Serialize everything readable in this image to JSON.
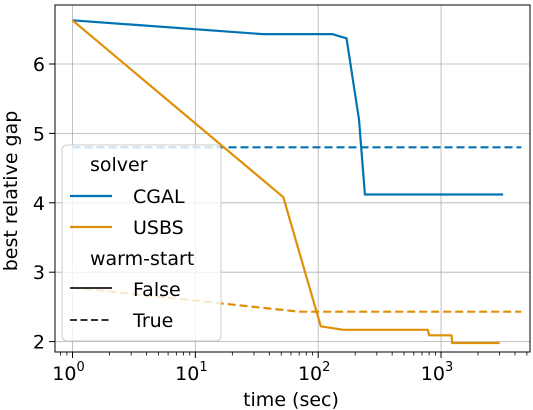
{
  "chart_data": {
    "type": "line",
    "xlabel": "time (sec)",
    "ylabel": "best relative gap",
    "xscale": "log",
    "xlim": [
      0.72,
      5300
    ],
    "ylim": [
      1.85,
      6.85
    ],
    "xticks": [
      {
        "value": 1,
        "base": "10",
        "exp": "0"
      },
      {
        "value": 10,
        "base": "10",
        "exp": "1"
      },
      {
        "value": 100,
        "base": "10",
        "exp": "2"
      },
      {
        "value": 1000,
        "base": "10",
        "exp": "3"
      }
    ],
    "yticks": [
      2,
      3,
      4,
      5,
      6
    ],
    "grid": true,
    "legend": {
      "position": "lower-left",
      "hue_title": "solver",
      "style_title": "warm-start",
      "style_entries": [
        "False",
        "True"
      ]
    },
    "series": [
      {
        "name": "CGAL",
        "warm_start": "False",
        "color": "#0173b2",
        "dash": "solid",
        "points": [
          [
            1,
            6.63
          ],
          [
            35,
            6.43
          ],
          [
            130,
            6.43
          ],
          [
            170,
            6.37
          ],
          [
            215,
            5.2
          ],
          [
            240,
            4.12
          ],
          [
            3200,
            4.12
          ]
        ]
      },
      {
        "name": "CGAL",
        "warm_start": "True",
        "color": "#0173b2",
        "dash": "dashed",
        "points": [
          [
            1,
            4.8
          ],
          [
            4500,
            4.8
          ]
        ]
      },
      {
        "name": "USBS",
        "warm_start": "False",
        "color": "#de8f05",
        "dash": "solid",
        "points": [
          [
            1,
            6.63
          ],
          [
            52,
            4.08
          ],
          [
            105,
            2.22
          ],
          [
            160,
            2.17
          ],
          [
            780,
            2.17
          ],
          [
            800,
            2.09
          ],
          [
            1050,
            2.09
          ],
          [
            1220,
            2.09
          ],
          [
            1230,
            1.98
          ],
          [
            3000,
            1.98
          ]
        ]
      },
      {
        "name": "USBS",
        "warm_start": "True",
        "color": "#de8f05",
        "dash": "dashed",
        "points": [
          [
            1,
            2.78
          ],
          [
            70,
            2.43
          ],
          [
            4500,
            2.43
          ]
        ]
      }
    ]
  }
}
